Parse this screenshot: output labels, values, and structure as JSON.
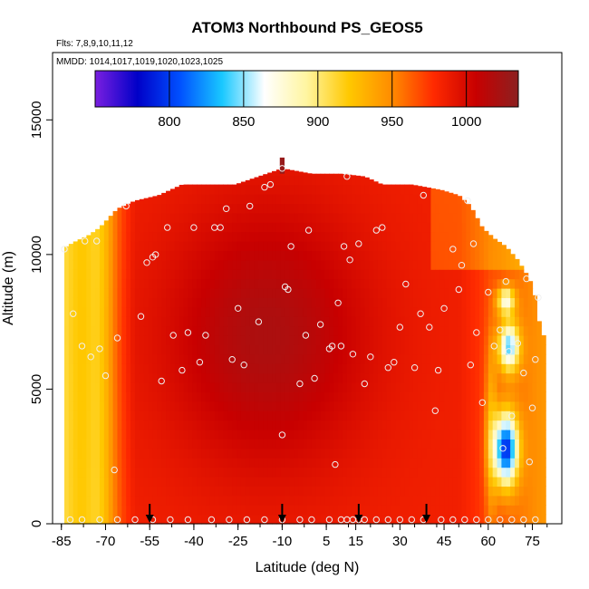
{
  "chart_data": {
    "type": "heatmap",
    "title": "ATOM3 Northbound PS_GEOS5",
    "subtitle_flights": "Flts: 7,8,9,10,11,12",
    "subtitle_dates": "MMDD: 1014,1017,1019,1020,1023,1025",
    "xlabel": "Latitude (deg N)",
    "ylabel": "Altitude (m)",
    "xlim": [
      -88,
      85
    ],
    "ylim": [
      0,
      17500
    ],
    "x_ticks": [
      -85,
      -70,
      -55,
      -40,
      -25,
      -10,
      5,
      15,
      30,
      45,
      60,
      75
    ],
    "y_ticks": [
      0,
      5000,
      10000,
      15000
    ],
    "colorbar": {
      "range": [
        750,
        1035
      ],
      "ticks": [
        800,
        850,
        900,
        950,
        1000
      ],
      "colors": [
        "#7a1fe0",
        "#0000c8",
        "#0050ff",
        "#19c8ff",
        "#ffffff",
        "#fff5a0",
        "#ffc800",
        "#ff8c00",
        "#ff2a00",
        "#c80000",
        "#8c2020"
      ]
    },
    "markers_lat": [
      -55,
      -10,
      16,
      39
    ],
    "sample_points": [
      [
        -84,
        10200
      ],
      [
        -81,
        7800
      ],
      [
        -78,
        6600
      ],
      [
        -77,
        10500
      ],
      [
        -75,
        6200
      ],
      [
        -73,
        10500
      ],
      [
        -72,
        6500
      ],
      [
        -70,
        5500
      ],
      [
        -67,
        2000
      ],
      [
        -66,
        6900
      ],
      [
        -63,
        11800
      ],
      [
        -58,
        7700
      ],
      [
        -56,
        9700
      ],
      [
        -54,
        9900
      ],
      [
        -53,
        10000
      ],
      [
        -51,
        5300
      ],
      [
        -49,
        11000
      ],
      [
        -47,
        7000
      ],
      [
        -44,
        5700
      ],
      [
        -42,
        7100
      ],
      [
        -40,
        11000
      ],
      [
        -38,
        6000
      ],
      [
        -36,
        7000
      ],
      [
        -33,
        11000
      ],
      [
        -31,
        11000
      ],
      [
        -29,
        11700
      ],
      [
        -27,
        6100
      ],
      [
        -25,
        8000
      ],
      [
        -23,
        5900
      ],
      [
        -21,
        11800
      ],
      [
        -18,
        7500
      ],
      [
        -16,
        12500
      ],
      [
        -14,
        12600
      ],
      [
        -10,
        13200
      ],
      [
        -10,
        3300
      ],
      [
        -9,
        8800
      ],
      [
        -8,
        8700
      ],
      [
        -7,
        10300
      ],
      [
        -4,
        5200
      ],
      [
        -2,
        7000
      ],
      [
        -1,
        10900
      ],
      [
        1,
        5400
      ],
      [
        3,
        7400
      ],
      [
        6,
        6500
      ],
      [
        7,
        6600
      ],
      [
        8,
        2200
      ],
      [
        9,
        8200
      ],
      [
        10,
        6600
      ],
      [
        11,
        10300
      ],
      [
        12,
        12900
      ],
      [
        13,
        9800
      ],
      [
        14,
        6300
      ],
      [
        16,
        10400
      ],
      [
        18,
        5200
      ],
      [
        20,
        6200
      ],
      [
        22,
        10900
      ],
      [
        24,
        11000
      ],
      [
        26,
        5800
      ],
      [
        28,
        6000
      ],
      [
        30,
        7300
      ],
      [
        32,
        8900
      ],
      [
        35,
        5800
      ],
      [
        37,
        7800
      ],
      [
        38,
        12200
      ],
      [
        40,
        7300
      ],
      [
        42,
        4200
      ],
      [
        43,
        5700
      ],
      [
        45,
        8000
      ],
      [
        48,
        10200
      ],
      [
        50,
        8700
      ],
      [
        51,
        9600
      ],
      [
        53,
        12000
      ],
      [
        54,
        5900
      ],
      [
        55,
        10400
      ],
      [
        56,
        7100
      ],
      [
        58,
        4500
      ],
      [
        60,
        8600
      ],
      [
        62,
        6600
      ],
      [
        64,
        7200
      ],
      [
        65,
        2800
      ],
      [
        66,
        9000
      ],
      [
        67,
        6400
      ],
      [
        68,
        4000
      ],
      [
        70,
        6700
      ],
      [
        72,
        5600
      ],
      [
        73,
        9100
      ],
      [
        74,
        2300
      ],
      [
        75,
        4300
      ],
      [
        76,
        6100
      ],
      [
        77,
        8400
      ]
    ],
    "surface_points_lat": [
      -82,
      -78,
      -72,
      -66,
      -60,
      -54,
      -48,
      -42,
      -34,
      -28,
      -22,
      -16,
      -10,
      -4,
      0,
      6,
      10,
      12,
      14,
      16,
      18,
      22,
      26,
      30,
      34,
      38,
      44,
      48,
      52,
      56,
      60,
      64,
      68,
      72,
      76
    ]
  }
}
